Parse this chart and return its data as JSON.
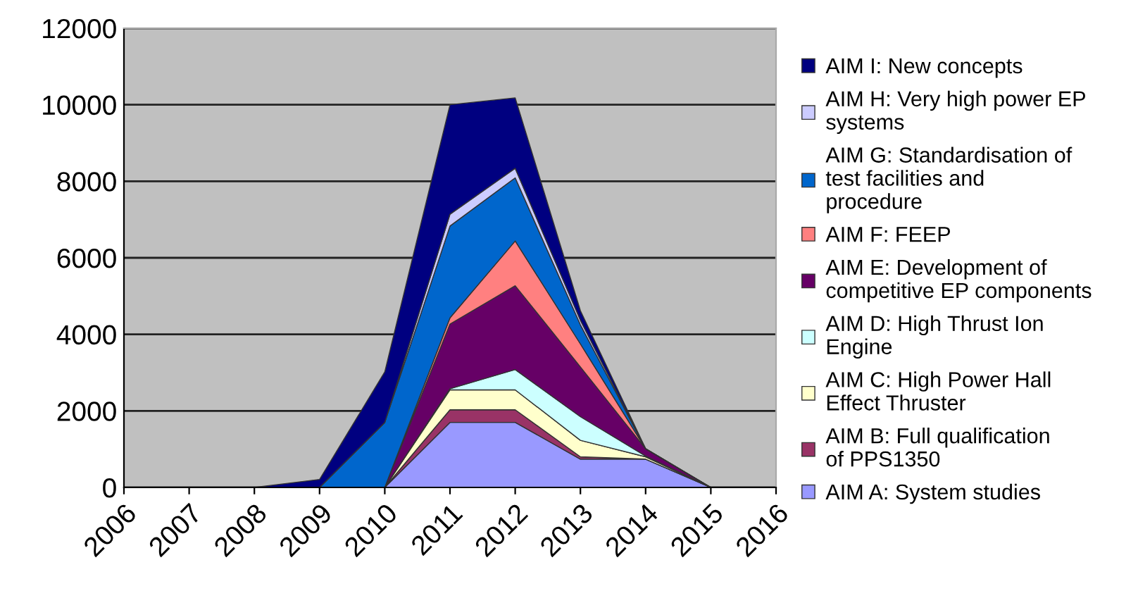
{
  "chart_data": {
    "type": "area",
    "stacked": true,
    "categories": [
      "2006",
      "2007",
      "2008",
      "2009",
      "2010",
      "2011",
      "2012",
      "2013",
      "2014",
      "2015",
      "2016"
    ],
    "ylim": [
      0,
      12000
    ],
    "yticks": [
      0,
      2000,
      4000,
      6000,
      8000,
      10000,
      12000
    ],
    "grid": "y",
    "legend": "right",
    "series": [
      {
        "name": "AIM A: System studies",
        "color": "#9999ff",
        "values": [
          0,
          0,
          0,
          0,
          0,
          1700,
          1700,
          740,
          740,
          0,
          0
        ]
      },
      {
        "name": "AIM B: Full qualification of PPS1350",
        "color": "#993366",
        "values": [
          0,
          0,
          0,
          0,
          0,
          330,
          330,
          60,
          0,
          0,
          0
        ]
      },
      {
        "name": "AIM C: High Power Hall Effect Thruster",
        "color": "#ffffcc",
        "values": [
          0,
          0,
          0,
          0,
          0,
          520,
          520,
          430,
          60,
          0,
          0
        ]
      },
      {
        "name": "AIM D: High Thrust Ion Engine",
        "color": "#ccffff",
        "values": [
          0,
          0,
          0,
          0,
          0,
          30,
          530,
          620,
          20,
          0,
          0
        ]
      },
      {
        "name": "AIM E: Development of competitive EP components",
        "color": "#660066",
        "values": [
          0,
          0,
          0,
          0,
          0,
          1690,
          2190,
          1300,
          190,
          0,
          0
        ]
      },
      {
        "name": "AIM F: FEEP",
        "color": "#ff8080",
        "values": [
          0,
          0,
          0,
          0,
          0,
          160,
          1170,
          600,
          0,
          0,
          0
        ]
      },
      {
        "name": "AIM G: Standardisation of test facilities and procedure",
        "color": "#0066cc",
        "values": [
          0,
          0,
          0,
          0,
          1700,
          2400,
          1650,
          500,
          0,
          0,
          0
        ]
      },
      {
        "name": "AIM H: Very high power EP systems",
        "color": "#ccccff",
        "values": [
          0,
          0,
          0,
          0,
          0,
          310,
          250,
          120,
          0,
          0,
          0
        ]
      },
      {
        "name": "AIM I: New concepts",
        "color": "#000080",
        "values": [
          0,
          0,
          0,
          210,
          1320,
          2860,
          1840,
          250,
          0,
          0,
          0
        ]
      }
    ]
  }
}
